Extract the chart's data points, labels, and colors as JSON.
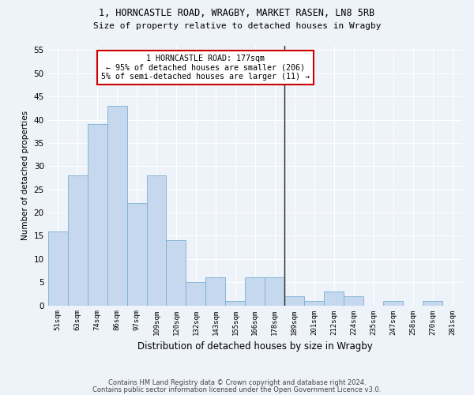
{
  "title1": "1, HORNCASTLE ROAD, WRAGBY, MARKET RASEN, LN8 5RB",
  "title2": "Size of property relative to detached houses in Wragby",
  "xlabel": "Distribution of detached houses by size in Wragby",
  "ylabel": "Number of detached properties",
  "categories": [
    "51sqm",
    "63sqm",
    "74sqm",
    "86sqm",
    "97sqm",
    "109sqm",
    "120sqm",
    "132sqm",
    "143sqm",
    "155sqm",
    "166sqm",
    "178sqm",
    "189sqm",
    "201sqm",
    "212sqm",
    "224sqm",
    "235sqm",
    "247sqm",
    "258sqm",
    "270sqm",
    "281sqm"
  ],
  "values": [
    16,
    28,
    39,
    43,
    22,
    28,
    14,
    5,
    6,
    1,
    6,
    6,
    2,
    1,
    3,
    2,
    0,
    1,
    0,
    1,
    0
  ],
  "bar_color": "#c5d8ee",
  "bar_edge_color": "#7bafd4",
  "vline_x": 11.5,
  "vline_color": "#222222",
  "annotation_title": "1 HORNCASTLE ROAD: 177sqm",
  "annotation_line1": "← 95% of detached houses are smaller (206)",
  "annotation_line2": "5% of semi-detached houses are larger (11) →",
  "annotation_box_color": "#cc0000",
  "ylim": [
    0,
    56
  ],
  "yticks": [
    0,
    5,
    10,
    15,
    20,
    25,
    30,
    35,
    40,
    45,
    50,
    55
  ],
  "footer1": "Contains HM Land Registry data © Crown copyright and database right 2024.",
  "footer2": "Contains public sector information licensed under the Open Government Licence v3.0.",
  "bg_color": "#eef2f9"
}
